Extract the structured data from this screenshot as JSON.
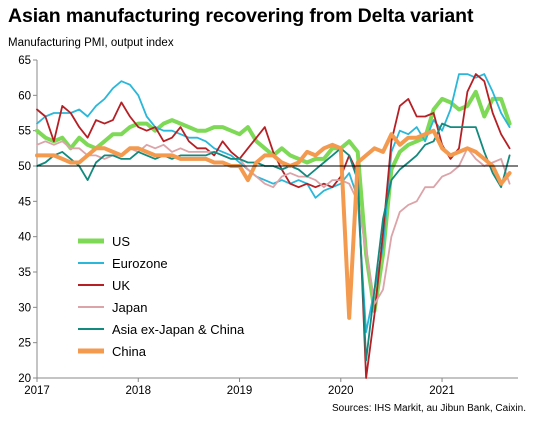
{
  "title": "Asian manufacturing recovering from Delta variant",
  "subtitle": "Manufacturing  PMI, output  index",
  "source": "Sources: IHS Markit, au Jibun Bank, Caixin.",
  "chart_data": {
    "type": "line",
    "title": "Asian manufacturing recovering from Delta variant",
    "ylabel": "Manufacturing  PMI, output  index",
    "xlabel": "",
    "ylim": [
      20,
      65
    ],
    "xlim": [
      2017.0,
      2021.75
    ],
    "y_ticks": [
      20,
      25,
      30,
      35,
      40,
      45,
      50,
      55,
      60,
      65
    ],
    "x_ticks": [
      "2017",
      "2018",
      "2019",
      "2020",
      "2021"
    ],
    "x_tick_values": [
      2017,
      2018,
      2019,
      2020,
      2021
    ],
    "reference_line": 50,
    "grid": false,
    "legend_position": "lower-left",
    "x": [
      2017.0,
      2017.083,
      2017.167,
      2017.25,
      2017.333,
      2017.417,
      2017.5,
      2017.583,
      2017.667,
      2017.75,
      2017.833,
      2017.917,
      2018.0,
      2018.083,
      2018.167,
      2018.25,
      2018.333,
      2018.417,
      2018.5,
      2018.583,
      2018.667,
      2018.75,
      2018.833,
      2018.917,
      2019.0,
      2019.083,
      2019.167,
      2019.25,
      2019.333,
      2019.417,
      2019.5,
      2019.583,
      2019.667,
      2019.75,
      2019.833,
      2019.917,
      2020.0,
      2020.083,
      2020.167,
      2020.25,
      2020.333,
      2020.417,
      2020.5,
      2020.583,
      2020.667,
      2020.75,
      2020.833,
      2020.917,
      2021.0,
      2021.083,
      2021.167,
      2021.25,
      2021.333,
      2021.417,
      2021.5,
      2021.583,
      2021.667
    ],
    "series": [
      {
        "name": "US",
        "color": "#7ed957",
        "width": 4,
        "values": [
          55.0,
          54.0,
          53.5,
          54.0,
          52.5,
          54.0,
          53.0,
          52.5,
          53.5,
          54.5,
          54.5,
          55.5,
          56.0,
          56.0,
          55.0,
          56.0,
          56.5,
          56.0,
          55.5,
          55.0,
          55.0,
          55.5,
          55.5,
          55.0,
          54.5,
          55.5,
          53.5,
          52.5,
          51.5,
          52.5,
          51.5,
          51.0,
          50.5,
          51.0,
          51.0,
          52.5,
          52.5,
          53.5,
          52.0,
          37.5,
          29.5,
          37.5,
          49.5,
          52.0,
          53.0,
          53.5,
          54.0,
          58.0,
          59.5,
          59.0,
          58.0,
          58.5,
          60.5,
          57.0,
          59.5,
          59.5,
          56.0
        ]
      },
      {
        "name": "Eurozone",
        "color": "#2ab7d9",
        "width": 1.8,
        "values": [
          56.0,
          57.0,
          57.5,
          57.5,
          57.5,
          58.0,
          57.0,
          58.5,
          59.5,
          61.0,
          62.0,
          61.5,
          60.0,
          57.0,
          55.5,
          55.0,
          55.0,
          54.5,
          54.0,
          54.0,
          53.5,
          52.5,
          52.0,
          51.5,
          50.5,
          49.5,
          48.5,
          48.0,
          47.5,
          48.0,
          47.5,
          48.0,
          47.5,
          45.5,
          46.5,
          47.0,
          47.5,
          49.0,
          45.5,
          26.5,
          32.5,
          38.5,
          52.0,
          55.0,
          54.5,
          55.5,
          53.5,
          56.5,
          55.0,
          58.0,
          63.0,
          63.0,
          62.5,
          63.0,
          60.5,
          57.5,
          55.5
        ]
      },
      {
        "name": "UK",
        "color": "#b52025",
        "width": 1.8,
        "values": [
          58.0,
          57.0,
          53.5,
          58.5,
          57.5,
          55.5,
          54.0,
          56.5,
          56.0,
          56.5,
          59.0,
          57.0,
          55.5,
          55.0,
          55.5,
          53.5,
          54.0,
          55.5,
          53.5,
          52.5,
          52.5,
          51.5,
          53.5,
          52.0,
          51.0,
          52.5,
          54.0,
          55.5,
          52.0,
          49.5,
          47.5,
          47.0,
          47.5,
          47.0,
          47.5,
          47.0,
          48.5,
          51.5,
          49.0,
          20.0,
          29.0,
          40.5,
          53.5,
          58.5,
          59.5,
          57.0,
          57.0,
          57.5,
          53.0,
          51.0,
          52.5,
          60.5,
          63.0,
          62.0,
          57.5,
          54.5,
          52.5
        ]
      },
      {
        "name": "Japan",
        "color": "#dca3a8",
        "width": 1.8,
        "values": [
          53.0,
          53.5,
          53.0,
          53.5,
          52.5,
          52.5,
          51.5,
          51.5,
          51.0,
          51.5,
          51.5,
          52.5,
          52.0,
          53.0,
          52.5,
          53.0,
          52.0,
          52.5,
          52.0,
          52.0,
          52.0,
          52.0,
          51.5,
          51.0,
          51.0,
          49.5,
          48.5,
          47.5,
          47.0,
          48.5,
          49.0,
          48.5,
          48.5,
          48.0,
          47.0,
          48.0,
          48.0,
          47.5,
          45.0,
          38.0,
          30.5,
          32.5,
          40.0,
          43.5,
          44.5,
          45.0,
          47.0,
          47.0,
          48.5,
          49.0,
          50.0,
          52.5,
          51.0,
          50.0,
          50.5,
          51.0,
          47.5
        ]
      },
      {
        "name": "Asia ex-Japan & China",
        "color": "#128a7e",
        "width": 1.8,
        "values": [
          50.0,
          50.5,
          51.5,
          52.0,
          51.0,
          50.0,
          48.0,
          50.5,
          51.5,
          51.5,
          51.0,
          51.0,
          52.0,
          51.5,
          51.0,
          51.5,
          51.0,
          51.5,
          51.5,
          51.5,
          51.5,
          52.0,
          51.5,
          51.0,
          51.0,
          50.5,
          50.5,
          50.0,
          50.0,
          49.5,
          50.0,
          49.5,
          48.5,
          49.5,
          50.5,
          51.5,
          52.5,
          51.5,
          48.0,
          22.5,
          32.5,
          42.5,
          48.0,
          49.5,
          50.5,
          51.5,
          53.0,
          53.5,
          56.0,
          55.5,
          55.5,
          55.5,
          55.5,
          52.0,
          49.0,
          47.0,
          51.5
        ]
      },
      {
        "name": "China",
        "color": "#f39a4f",
        "width": 4,
        "values": [
          51.5,
          51.5,
          51.5,
          51.0,
          50.5,
          50.5,
          51.5,
          52.5,
          52.5,
          52.0,
          51.5,
          52.5,
          52.5,
          52.0,
          51.5,
          51.5,
          51.5,
          51.0,
          51.0,
          51.0,
          51.0,
          50.5,
          50.5,
          50.0,
          50.0,
          48.0,
          50.5,
          51.5,
          51.5,
          50.5,
          50.0,
          50.5,
          52.0,
          51.5,
          52.5,
          53.0,
          52.5,
          28.5,
          50.5,
          51.5,
          52.5,
          52.0,
          54.5,
          53.0,
          54.0,
          54.0,
          54.5,
          55.0,
          52.5,
          51.5,
          52.0,
          52.5,
          52.0,
          51.0,
          50.0,
          47.5,
          49.0
        ]
      }
    ]
  }
}
